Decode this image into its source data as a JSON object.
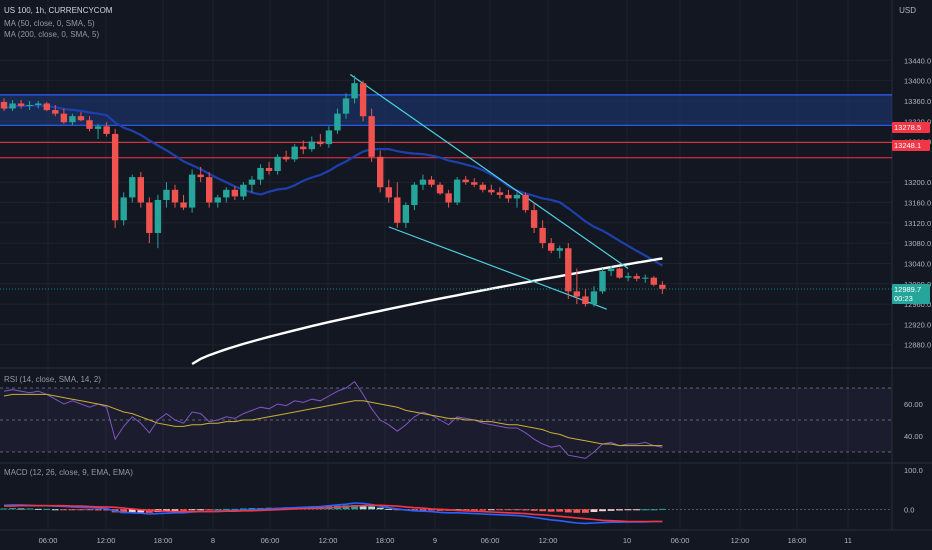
{
  "header": {
    "symbol": "US 100, 1h, CURRENCYCOM",
    "ma1": "MA (50, close, 0, SMA, 5)",
    "ma2": "MA (200, close, 0, SMA, 5)",
    "rsi_label": "RSI (14, close, SMA, 14, 2)",
    "macd_label": "MACD (12, 26, close, 9, EMA, EMA)",
    "currency": "USD"
  },
  "price_tags": {
    "level1": "13278.5",
    "level2": "13248.1",
    "last": "12989.7",
    "countdown": "00:23"
  },
  "colors": {
    "up": "#26a69a",
    "down": "#ef5350",
    "zone": "#1e3a7a",
    "zone_border": "#2962ff",
    "ma50": "#1e40af",
    "ma200": "#ffffff",
    "level": "#f23645",
    "trendline": "#4dd0e1",
    "rsi": "#7e57c2",
    "rsi_ma": "#c9b037",
    "macd": "#2962ff",
    "signal": "#f23645"
  },
  "chart_data": [
    {
      "type": "candlestick",
      "title": "US 100, 1h, CURRENCYCOM",
      "ylabel": "USD",
      "ylim": [
        12840,
        13480
      ],
      "y_ticks": [
        13440.0,
        13400.0,
        13360.0,
        13320.0,
        13280.0,
        13200.0,
        13160.0,
        13120.0,
        13080.0,
        13040.0,
        13000.0,
        12960.0,
        12920.0,
        12880.0
      ],
      "x_ticks": [
        "06:00",
        "12:00",
        "18:00",
        "8",
        "06:00",
        "12:00",
        "18:00",
        "9",
        "06:00",
        "12:00",
        "10",
        "06:00",
        "12:00",
        "18:00",
        "11"
      ],
      "ohlc": [
        [
          13358,
          13365,
          13340,
          13345
        ],
        [
          13345,
          13362,
          13340,
          13355
        ],
        [
          13355,
          13362,
          13345,
          13350
        ],
        [
          13350,
          13360,
          13342,
          13352
        ],
        [
          13352,
          13360,
          13345,
          13355
        ],
        [
          13355,
          13358,
          13340,
          13342
        ],
        [
          13342,
          13352,
          13330,
          13335
        ],
        [
          13335,
          13345,
          13315,
          13318
        ],
        [
          13318,
          13335,
          13312,
          13330
        ],
        [
          13330,
          13338,
          13320,
          13322
        ],
        [
          13322,
          13330,
          13300,
          13305
        ],
        [
          13305,
          13315,
          13285,
          13310
        ],
        [
          13310,
          13318,
          13290,
          13295
        ],
        [
          13295,
          13305,
          13110,
          13125
        ],
        [
          13125,
          13180,
          13115,
          13170
        ],
        [
          13170,
          13215,
          13160,
          13210
        ],
        [
          13210,
          13220,
          13150,
          13160
        ],
        [
          13160,
          13170,
          13080,
          13100
        ],
        [
          13100,
          13175,
          13070,
          13165
        ],
        [
          13165,
          13200,
          13150,
          13185
        ],
        [
          13185,
          13195,
          13150,
          13160
        ],
        [
          13160,
          13175,
          13145,
          13150
        ],
        [
          13150,
          13225,
          13140,
          13215
        ],
        [
          13215,
          13230,
          13200,
          13210
        ],
        [
          13210,
          13220,
          13150,
          13160
        ],
        [
          13160,
          13175,
          13150,
          13170
        ],
        [
          13170,
          13190,
          13160,
          13185
        ],
        [
          13185,
          13192,
          13165,
          13172
        ],
        [
          13172,
          13200,
          13165,
          13195
        ],
        [
          13195,
          13212,
          13180,
          13205
        ],
        [
          13205,
          13235,
          13195,
          13228
        ],
        [
          13228,
          13240,
          13215,
          13222
        ],
        [
          13222,
          13255,
          13215,
          13250
        ],
        [
          13250,
          13262,
          13240,
          13245
        ],
        [
          13245,
          13275,
          13240,
          13270
        ],
        [
          13270,
          13282,
          13255,
          13265
        ],
        [
          13265,
          13290,
          13260,
          13280
        ],
        [
          13280,
          13295,
          13270,
          13275
        ],
        [
          13275,
          13310,
          13268,
          13302
        ],
        [
          13302,
          13345,
          13295,
          13335
        ],
        [
          13335,
          13375,
          13325,
          13365
        ],
        [
          13365,
          13410,
          13355,
          13395
        ],
        [
          13395,
          13400,
          13320,
          13330
        ],
        [
          13330,
          13345,
          13240,
          13250
        ],
        [
          13250,
          13262,
          13180,
          13190
        ],
        [
          13190,
          13205,
          13160,
          13170
        ],
        [
          13170,
          13200,
          13110,
          13120
        ],
        [
          13120,
          13160,
          13110,
          13155
        ],
        [
          13155,
          13200,
          13145,
          13195
        ],
        [
          13195,
          13215,
          13185,
          13205
        ],
        [
          13205,
          13212,
          13190,
          13195
        ],
        [
          13195,
          13200,
          13175,
          13178
        ],
        [
          13178,
          13185,
          13150,
          13160
        ],
        [
          13160,
          13210,
          13155,
          13205
        ],
        [
          13205,
          13212,
          13195,
          13200
        ],
        [
          13200,
          13208,
          13190,
          13195
        ],
        [
          13195,
          13200,
          13180,
          13185
        ],
        [
          13185,
          13195,
          13175,
          13180
        ],
        [
          13180,
          13190,
          13168,
          13175
        ],
        [
          13175,
          13185,
          13160,
          13168
        ],
        [
          13168,
          13180,
          13150,
          13175
        ],
        [
          13175,
          13180,
          13140,
          13145
        ],
        [
          13145,
          13160,
          13100,
          13110
        ],
        [
          13110,
          13125,
          13070,
          13080
        ],
        [
          13080,
          13090,
          13060,
          13065
        ],
        [
          13065,
          13075,
          13050,
          13070
        ],
        [
          13070,
          13080,
          12970,
          12985
        ],
        [
          12985,
          13030,
          12960,
          12975
        ],
        [
          12975,
          12990,
          12955,
          12960
        ],
        [
          12960,
          12995,
          12955,
          12985
        ],
        [
          12985,
          13030,
          12980,
          13025
        ],
        [
          13025,
          13035,
          13015,
          13030
        ],
        [
          13030,
          13032,
          13010,
          13012
        ],
        [
          13012,
          13022,
          13005,
          13015
        ],
        [
          13015,
          13020,
          13005,
          13010
        ],
        [
          13010,
          13018,
          13002,
          13012
        ],
        [
          13012,
          13015,
          12995,
          12998
        ],
        [
          12998,
          13005,
          12980,
          12990
        ]
      ]
    },
    {
      "type": "line",
      "title": "RSI (14, close, SMA, 14, 2)",
      "ylim": [
        25,
        80
      ],
      "y_ticks": [
        60.0,
        40.0
      ],
      "series": [
        {
          "name": "RSI",
          "values": [
            68,
            69,
            68,
            67,
            68,
            66,
            63,
            60,
            62,
            60,
            58,
            60,
            58,
            38,
            46,
            52,
            48,
            42,
            50,
            54,
            50,
            48,
            55,
            54,
            49,
            50,
            52,
            51,
            54,
            56,
            58,
            57,
            60,
            59,
            62,
            61,
            63,
            62,
            65,
            68,
            70,
            74,
            66,
            57,
            50,
            47,
            43,
            47,
            52,
            55,
            53,
            50,
            47,
            52,
            51,
            50,
            48,
            47,
            46,
            45,
            45,
            42,
            38,
            35,
            33,
            34,
            28,
            27,
            26,
            30,
            35,
            36,
            34,
            35,
            35,
            36,
            34,
            33
          ]
        },
        {
          "name": "RSI-based MA",
          "values": [
            65,
            66,
            66,
            66,
            66,
            66,
            65,
            64,
            63,
            62,
            61,
            60,
            59,
            57,
            55,
            54,
            52,
            50,
            48,
            47,
            46,
            46,
            47,
            47,
            48,
            48,
            49,
            49,
            50,
            50,
            51,
            52,
            53,
            54,
            55,
            56,
            57,
            58,
            59,
            60,
            61,
            62,
            62,
            61,
            60,
            59,
            58,
            56,
            55,
            54,
            53,
            52,
            51,
            51,
            50,
            50,
            49,
            49,
            48,
            47,
            47,
            46,
            45,
            44,
            42,
            41,
            39,
            38,
            37,
            36,
            35,
            35,
            34,
            34,
            34,
            34,
            34,
            34
          ]
        }
      ]
    },
    {
      "type": "bar",
      "title": "MACD (12, 26, close, 9, EMA, EMA)",
      "ylim": [
        -40,
        110
      ],
      "y_ticks": [
        100.0,
        0.0
      ],
      "series": [
        {
          "name": "Histogram",
          "values": [
            2,
            3,
            2,
            2,
            1,
            1,
            0,
            -1,
            -1,
            -2,
            -2,
            -3,
            -3,
            -8,
            -10,
            -9,
            -8,
            -9,
            -7,
            -5,
            -4,
            -4,
            -2,
            -1,
            -1,
            0,
            1,
            1,
            2,
            3,
            3,
            4,
            4,
            5,
            5,
            6,
            6,
            7,
            8,
            9,
            10,
            11,
            10,
            7,
            4,
            1,
            -1,
            -2,
            -3,
            -3,
            -3,
            -4,
            -4,
            -3,
            -3,
            -3,
            -3,
            -2,
            -2,
            -2,
            -2,
            -3,
            -4,
            -5,
            -6,
            -6,
            -8,
            -9,
            -9,
            -7,
            -5,
            -4,
            -3,
            -2,
            -1,
            0,
            0,
            1
          ]
        },
        {
          "name": "MACD",
          "values": [
            10,
            11,
            11,
            10,
            9,
            9,
            8,
            7,
            6,
            5,
            4,
            3,
            2,
            -5,
            -8,
            -9,
            -10,
            -12,
            -11,
            -10,
            -9,
            -9,
            -7,
            -6,
            -6,
            -5,
            -4,
            -3,
            -2,
            -1,
            0,
            1,
            2,
            3,
            4,
            5,
            6,
            7,
            9,
            11,
            13,
            16,
            15,
            12,
            8,
            4,
            1,
            -2,
            -4,
            -5,
            -6,
            -8,
            -9,
            -9,
            -10,
            -11,
            -12,
            -13,
            -14,
            -15,
            -16,
            -18,
            -21,
            -24,
            -27,
            -29,
            -32,
            -35,
            -36,
            -35,
            -34,
            -33,
            -33,
            -32,
            -32,
            -32,
            -31,
            -31
          ]
        },
        {
          "name": "Signal",
          "values": [
            8,
            8,
            9,
            9,
            9,
            9,
            9,
            9,
            8,
            8,
            7,
            6,
            6,
            5,
            3,
            1,
            -1,
            -3,
            -4,
            -5,
            -6,
            -6,
            -6,
            -6,
            -6,
            -6,
            -5,
            -5,
            -4,
            -4,
            -3,
            -2,
            -1,
            0,
            1,
            2,
            2,
            3,
            4,
            5,
            7,
            8,
            9,
            10,
            10,
            9,
            8,
            6,
            4,
            3,
            1,
            0,
            -1,
            -3,
            -4,
            -5,
            -6,
            -7,
            -8,
            -9,
            -10,
            -11,
            -13,
            -14,
            -16,
            -18,
            -20,
            -22,
            -24,
            -26,
            -28,
            -29,
            -30,
            -31,
            -31,
            -31,
            -31,
            -31
          ]
        }
      ]
    }
  ]
}
